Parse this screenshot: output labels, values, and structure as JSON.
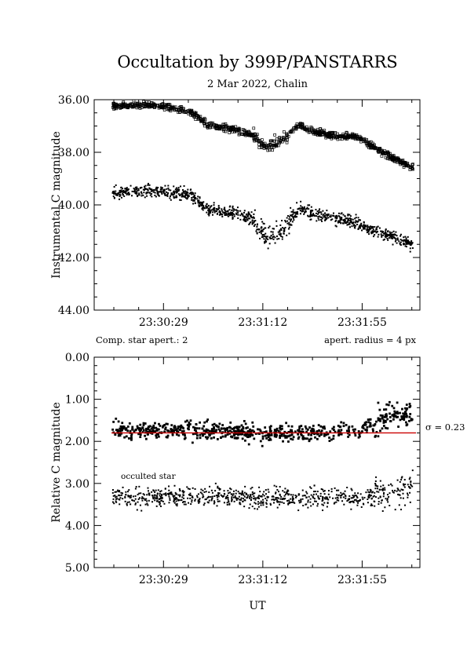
{
  "title": "Occultation by 399P/PANSTARRS",
  "subtitle": "2 Mar 2022, Chalin",
  "annotations": {
    "comp_star": "Comp. star apert.: 2",
    "aperture": "apert. radius = 4 px",
    "occulted": "occulted star",
    "sigma": "σ = 0.23"
  },
  "xlabel": "UT",
  "chart_data": [
    {
      "type": "scatter",
      "ylabel": "Instrumental C magnitude",
      "ylim": [
        36.0,
        44.0
      ],
      "y_inverted": true,
      "y_ticks": [
        "36.00",
        "38.00",
        "40.00",
        "42.00",
        "44.00"
      ],
      "x_ticks": [
        "23:30:29",
        "23:31:12",
        "23:31:55"
      ],
      "x_range": [
        "23:29:59",
        "23:32:20"
      ],
      "series": [
        {
          "marker": "open-square",
          "x": [
            "23:30:07",
            "23:30:18",
            "23:30:29",
            "23:30:40",
            "23:30:48",
            "23:31:00",
            "23:31:08",
            "23:31:14",
            "23:31:20",
            "23:31:28",
            "23:31:34",
            "23:31:45",
            "23:31:52",
            "23:31:58",
            "23:32:08",
            "23:32:17"
          ],
          "values": [
            36.25,
            36.2,
            36.25,
            36.45,
            36.95,
            37.15,
            37.35,
            37.85,
            37.55,
            36.95,
            37.2,
            37.4,
            37.4,
            37.7,
            38.2,
            38.6
          ]
        },
        {
          "marker": "dot",
          "x": [
            "23:30:07",
            "23:30:18",
            "23:30:29",
            "23:30:40",
            "23:30:48",
            "23:31:00",
            "23:31:08",
            "23:31:14",
            "23:31:20",
            "23:31:28",
            "23:31:34",
            "23:31:45",
            "23:31:52",
            "23:31:58",
            "23:32:08",
            "23:32:17"
          ],
          "values": [
            39.55,
            39.5,
            39.5,
            39.6,
            40.15,
            40.3,
            40.6,
            41.3,
            40.95,
            40.15,
            40.35,
            40.55,
            40.65,
            40.95,
            41.2,
            41.55
          ]
        }
      ]
    },
    {
      "type": "scatter",
      "ylabel": "Relative C magnitude",
      "ylim": [
        0.0,
        5.0
      ],
      "y_inverted": true,
      "y_ticks": [
        "0.00",
        "1.00",
        "2.00",
        "3.00",
        "4.00",
        "5.00"
      ],
      "x_ticks": [
        "23:30:29",
        "23:31:12",
        "23:31:55"
      ],
      "x_range": [
        "23:29:59",
        "23:32:20"
      ],
      "fit_line": {
        "y": 1.8,
        "color": "#cc0000"
      },
      "series": [
        {
          "marker": "filled-square",
          "x": [
            "23:30:07",
            "23:30:29",
            "23:30:48",
            "23:31:12",
            "23:31:34",
            "23:31:55",
            "23:32:02",
            "23:32:10",
            "23:32:17"
          ],
          "values": [
            1.75,
            1.75,
            1.75,
            1.8,
            1.8,
            1.75,
            1.55,
            1.35,
            1.4
          ]
        },
        {
          "marker": "dot",
          "x": [
            "23:30:07",
            "23:30:29",
            "23:30:48",
            "23:31:12",
            "23:31:34",
            "23:31:55",
            "23:32:05",
            "23:32:17"
          ],
          "values": [
            3.35,
            3.3,
            3.3,
            3.35,
            3.35,
            3.35,
            3.25,
            3.1
          ]
        }
      ]
    }
  ]
}
